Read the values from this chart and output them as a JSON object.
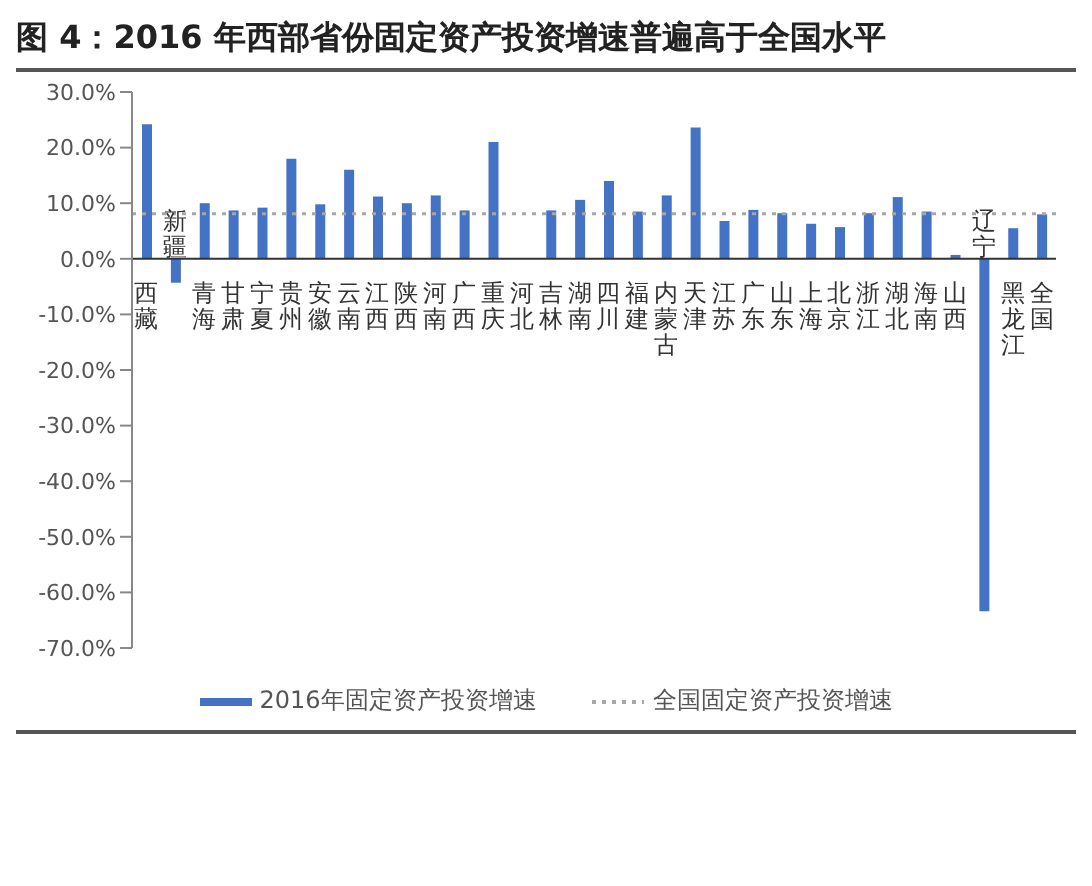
{
  "chart_data": {
    "type": "bar",
    "title": "图 4：2016 年西部省份固定资产投资增速普遍高于全国水平",
    "categories": [
      "西藏",
      "新疆",
      "青海",
      "甘肃",
      "宁夏",
      "贵州",
      "安徽",
      "云南",
      "江西",
      "陕西",
      "河南",
      "广西",
      "重庆",
      "河北",
      "吉林",
      "湖南",
      "四川",
      "福建",
      "内蒙古",
      "天津",
      "江苏",
      "广东",
      "山东",
      "上海",
      "北京",
      "浙江",
      "湖北",
      "海南",
      "山西",
      "辽宁",
      "黑龙江",
      "全国"
    ],
    "series": [
      {
        "name": "2016年固定资产投资增速",
        "color": "#4472c4",
        "values": [
          24.2,
          -4.3,
          10.0,
          8.7,
          9.2,
          18.0,
          9.8,
          16.0,
          11.2,
          10.0,
          11.4,
          8.7,
          21.0,
          null,
          8.7,
          10.6,
          14.0,
          8.5,
          11.4,
          23.6,
          6.8,
          8.8,
          8.2,
          6.3,
          5.7,
          8.2,
          11.1,
          8.5,
          0.7,
          -63.4,
          5.5,
          8.0
        ]
      }
    ],
    "ylim": [
      -70,
      30
    ],
    "yticks": [
      {
        "value": -70,
        "label": "-70.0%"
      },
      {
        "value": -60,
        "label": "-60.0%"
      },
      {
        "value": -50,
        "label": "-50.0%"
      },
      {
        "value": -40,
        "label": "-40.0%"
      },
      {
        "value": -30,
        "label": "-30.0%"
      },
      {
        "value": -20,
        "label": "-20.0%"
      },
      {
        "value": -10,
        "label": "-10.0%"
      },
      {
        "value": 0,
        "label": "0.0%"
      },
      {
        "value": 10,
        "label": "10.0%"
      },
      {
        "value": 20,
        "label": "20.0%"
      },
      {
        "value": 30,
        "label": "30.0%"
      }
    ],
    "ref_lines": [
      {
        "axis": "y",
        "value": 8.1,
        "label": "全国固定资产投资增速",
        "color": "#a6a6a6",
        "line_style": "dotted"
      }
    ],
    "legend": "bottom"
  }
}
